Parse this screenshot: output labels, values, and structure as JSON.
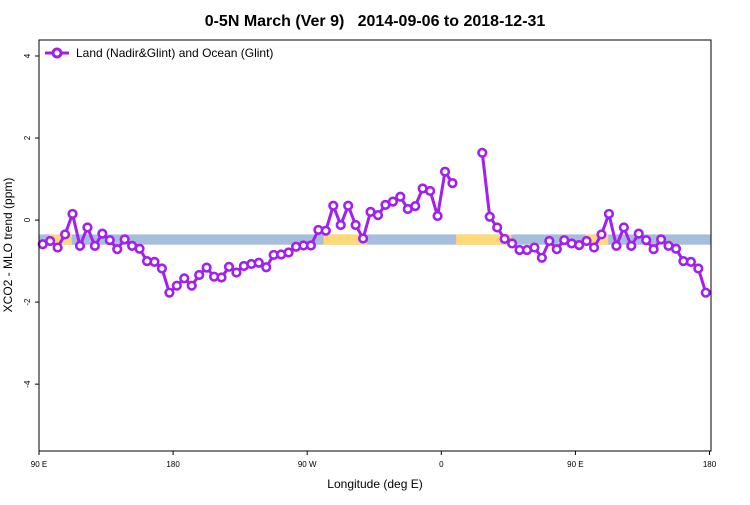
{
  "chart_data": {
    "type": "line",
    "title": "0-5N March (Ver 9)   2014-09-06 to 2018-12-31",
    "xlabel": "Longitude (deg E)",
    "ylabel": "XCO2 - MLO trend (ppm)",
    "xlim": [
      90,
      541
    ],
    "ylim": [
      -5.63,
      4.39
    ],
    "xticks": [
      {
        "value": 90,
        "label": "90 E"
      },
      {
        "value": 180,
        "label": "180"
      },
      {
        "value": 270,
        "label": "90 W"
      },
      {
        "value": 360,
        "label": "0"
      },
      {
        "value": 450,
        "label": "90 E"
      },
      {
        "value": 540,
        "label": "180"
      }
    ],
    "yticks": [
      {
        "value": 4,
        "label": "4"
      },
      {
        "value": 2,
        "label": "2"
      },
      {
        "value": 0,
        "label": "0"
      },
      {
        "value": -2,
        "label": "-2"
      },
      {
        "value": -4,
        "label": "-4"
      }
    ],
    "grid": false,
    "legend_position": "top-left",
    "surface_band": {
      "y_range": [
        -0.6,
        -0.35
      ],
      "ocean_color": "#a6bddb",
      "land_color": "#fed976",
      "land_segments": [
        [
          97,
          112
        ],
        [
          281,
          310
        ],
        [
          370,
          407
        ],
        [
          457,
          472
        ]
      ]
    },
    "series": [
      {
        "name": "Land (Nadir&Glint) and Ocean (Glint)",
        "color": "#a020f0",
        "x_start": 92.5,
        "x_step": 5,
        "values": [
          -0.59,
          -0.51,
          -0.67,
          -0.35,
          0.15,
          -0.63,
          -0.18,
          -0.63,
          -0.33,
          -0.49,
          -0.71,
          -0.47,
          -0.63,
          -0.7,
          -1.0,
          -1.02,
          -1.18,
          -1.77,
          -1.6,
          -1.42,
          -1.6,
          -1.34,
          -1.16,
          -1.38,
          -1.4,
          -1.14,
          -1.28,
          -1.12,
          -1.07,
          -1.04,
          -1.15,
          -0.85,
          -0.84,
          -0.79,
          -0.65,
          -0.62,
          -0.62,
          -0.24,
          -0.26,
          0.35,
          -0.12,
          0.35,
          -0.12,
          -0.45,
          0.2,
          0.12,
          0.37,
          0.45,
          0.57,
          0.27,
          0.34,
          0.77,
          0.71,
          0.1,
          1.18,
          0.9,
          null,
          null,
          null,
          1.64,
          0.08,
          -0.18,
          -0.46,
          -0.57,
          -0.73,
          -0.73,
          -0.67,
          -0.92,
          -0.51,
          -0.71,
          -0.49,
          -0.57,
          -0.61,
          -0.51,
          -0.67,
          -0.35,
          0.15,
          -0.63,
          -0.18,
          -0.63,
          -0.33,
          -0.49,
          -0.71,
          -0.47,
          -0.63,
          -0.7,
          -1.0,
          -1.02,
          -1.18,
          -1.77
        ]
      }
    ]
  }
}
